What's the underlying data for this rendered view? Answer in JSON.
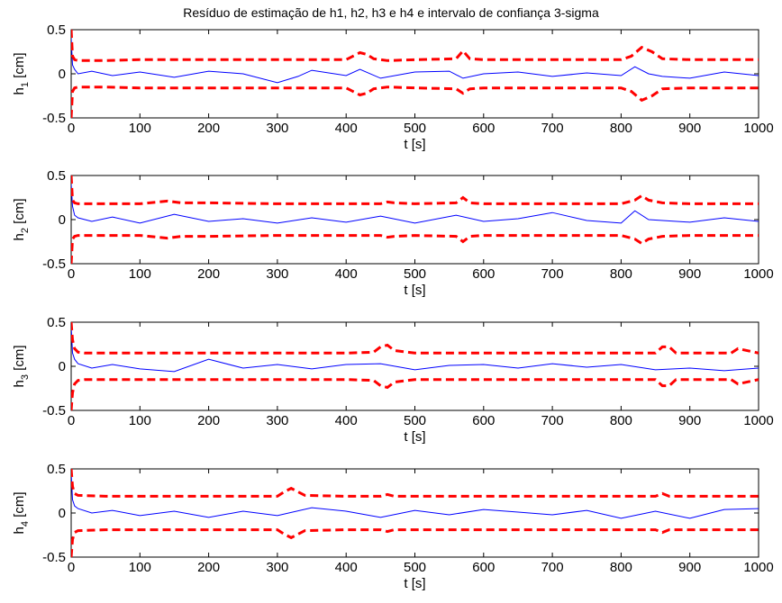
{
  "figure": {
    "title": "Resíduo de estimação de h1, h2, h3 e h4 e intervalo de confiança 3-sigma"
  },
  "chart_data": [
    {
      "type": "line",
      "ylabel_base": "h",
      "ylabel_sub": "1",
      "ylabel_unit": " [cm]",
      "xlabel": "t [s]",
      "xlim": [
        0,
        1000
      ],
      "ylim": [
        -0.5,
        0.5
      ],
      "xticks": [
        0,
        100,
        200,
        300,
        400,
        500,
        600,
        700,
        800,
        900,
        1000
      ],
      "yticks": [
        0.5,
        0,
        -0.5
      ],
      "series": [
        {
          "role": "residual",
          "color": "#0000ff",
          "style": "solid",
          "x": [
            0,
            2,
            5,
            10,
            30,
            60,
            100,
            150,
            200,
            250,
            300,
            330,
            350,
            400,
            420,
            450,
            500,
            550,
            570,
            600,
            650,
            700,
            750,
            800,
            820,
            840,
            860,
            900,
            950,
            1000
          ],
          "y": [
            0.4,
            0.1,
            0.05,
            0.0,
            0.03,
            -0.02,
            0.02,
            -0.04,
            0.03,
            0.0,
            -0.1,
            -0.03,
            0.04,
            -0.02,
            0.05,
            -0.05,
            0.02,
            0.03,
            -0.05,
            0.0,
            0.02,
            -0.03,
            0.01,
            -0.02,
            0.08,
            0.0,
            -0.03,
            -0.05,
            0.02,
            -0.02
          ]
        },
        {
          "role": "upper-bound",
          "color": "#ff0000",
          "style": "dashed",
          "x": [
            0,
            2,
            5,
            10,
            50,
            100,
            200,
            300,
            400,
            410,
            420,
            430,
            440,
            460,
            500,
            560,
            570,
            580,
            600,
            700,
            800,
            815,
            830,
            845,
            860,
            900,
            1000
          ],
          "y": [
            0.5,
            0.2,
            0.16,
            0.15,
            0.15,
            0.16,
            0.16,
            0.16,
            0.16,
            0.2,
            0.24,
            0.22,
            0.17,
            0.15,
            0.16,
            0.17,
            0.26,
            0.17,
            0.16,
            0.16,
            0.16,
            0.2,
            0.3,
            0.25,
            0.17,
            0.16,
            0.16
          ]
        },
        {
          "role": "lower-bound",
          "color": "#ff0000",
          "style": "dashed",
          "x": [
            0,
            2,
            5,
            10,
            50,
            100,
            200,
            300,
            400,
            410,
            420,
            430,
            440,
            460,
            500,
            560,
            570,
            580,
            600,
            700,
            800,
            815,
            830,
            845,
            860,
            900,
            1000
          ],
          "y": [
            -0.5,
            -0.2,
            -0.16,
            -0.15,
            -0.15,
            -0.16,
            -0.16,
            -0.16,
            -0.16,
            -0.2,
            -0.24,
            -0.22,
            -0.17,
            -0.15,
            -0.16,
            -0.17,
            -0.22,
            -0.17,
            -0.16,
            -0.16,
            -0.16,
            -0.2,
            -0.3,
            -0.25,
            -0.17,
            -0.16,
            -0.16
          ]
        }
      ]
    },
    {
      "type": "line",
      "ylabel_base": "h",
      "ylabel_sub": "2",
      "ylabel_unit": " [cm]",
      "xlabel": "t [s]",
      "xlim": [
        0,
        1000
      ],
      "ylim": [
        -0.5,
        0.5
      ],
      "xticks": [
        0,
        100,
        200,
        300,
        400,
        500,
        600,
        700,
        800,
        900,
        1000
      ],
      "yticks": [
        0.5,
        0,
        -0.5
      ],
      "series": [
        {
          "role": "residual",
          "color": "#0000ff",
          "style": "solid",
          "x": [
            0,
            2,
            5,
            10,
            30,
            60,
            100,
            150,
            200,
            250,
            300,
            350,
            400,
            450,
            500,
            560,
            600,
            650,
            700,
            750,
            800,
            820,
            840,
            900,
            950,
            1000
          ],
          "y": [
            0.4,
            0.15,
            0.05,
            0.02,
            -0.02,
            0.03,
            -0.04,
            0.06,
            -0.02,
            0.01,
            -0.04,
            0.02,
            -0.03,
            0.04,
            -0.04,
            0.05,
            -0.02,
            0.01,
            0.08,
            -0.01,
            -0.04,
            0.1,
            0.0,
            -0.03,
            0.02,
            -0.02
          ]
        },
        {
          "role": "upper-bound",
          "color": "#ff0000",
          "style": "dashed",
          "x": [
            0,
            2,
            5,
            10,
            50,
            100,
            140,
            150,
            160,
            200,
            300,
            400,
            450,
            460,
            470,
            500,
            560,
            570,
            580,
            600,
            700,
            800,
            820,
            830,
            840,
            860,
            900,
            1000
          ],
          "y": [
            0.5,
            0.22,
            0.19,
            0.18,
            0.18,
            0.18,
            0.21,
            0.2,
            0.19,
            0.19,
            0.18,
            0.18,
            0.18,
            0.2,
            0.19,
            0.18,
            0.19,
            0.25,
            0.19,
            0.18,
            0.18,
            0.18,
            0.22,
            0.27,
            0.22,
            0.19,
            0.18,
            0.18
          ]
        },
        {
          "role": "lower-bound",
          "color": "#ff0000",
          "style": "dashed",
          "x": [
            0,
            2,
            5,
            10,
            50,
            100,
            140,
            150,
            160,
            200,
            300,
            400,
            450,
            460,
            470,
            500,
            560,
            570,
            580,
            600,
            700,
            800,
            820,
            830,
            840,
            860,
            900,
            1000
          ],
          "y": [
            -0.5,
            -0.22,
            -0.19,
            -0.18,
            -0.18,
            -0.18,
            -0.21,
            -0.2,
            -0.19,
            -0.19,
            -0.18,
            -0.18,
            -0.18,
            -0.2,
            -0.19,
            -0.18,
            -0.19,
            -0.25,
            -0.19,
            -0.18,
            -0.18,
            -0.18,
            -0.22,
            -0.27,
            -0.22,
            -0.19,
            -0.18,
            -0.18
          ]
        }
      ]
    },
    {
      "type": "line",
      "ylabel_base": "h",
      "ylabel_sub": "3",
      "ylabel_unit": " [cm]",
      "xlabel": "t [s]",
      "xlim": [
        0,
        1000
      ],
      "ylim": [
        -0.5,
        0.5
      ],
      "xticks": [
        0,
        100,
        200,
        300,
        400,
        500,
        600,
        700,
        800,
        900,
        1000
      ],
      "yticks": [
        0.5,
        0,
        -0.5
      ],
      "series": [
        {
          "role": "residual",
          "color": "#0000ff",
          "style": "solid",
          "x": [
            0,
            2,
            5,
            10,
            30,
            60,
            100,
            150,
            200,
            250,
            300,
            350,
            400,
            450,
            500,
            550,
            600,
            650,
            700,
            750,
            800,
            850,
            900,
            950,
            1000
          ],
          "y": [
            0.45,
            0.15,
            0.08,
            0.03,
            -0.02,
            0.02,
            -0.03,
            -0.06,
            0.08,
            -0.02,
            0.02,
            -0.03,
            0.02,
            0.03,
            -0.04,
            0.01,
            0.02,
            -0.02,
            0.03,
            -0.01,
            0.02,
            -0.04,
            -0.02,
            -0.05,
            -0.02
          ]
        },
        {
          "role": "upper-bound",
          "color": "#ff0000",
          "style": "dashed",
          "x": [
            0,
            2,
            5,
            10,
            20,
            50,
            100,
            200,
            300,
            400,
            440,
            450,
            460,
            470,
            500,
            600,
            700,
            800,
            850,
            860,
            870,
            880,
            900,
            960,
            970,
            1000
          ],
          "y": [
            0.5,
            0.3,
            0.2,
            0.16,
            0.15,
            0.15,
            0.15,
            0.15,
            0.15,
            0.15,
            0.16,
            0.22,
            0.24,
            0.18,
            0.15,
            0.15,
            0.15,
            0.15,
            0.15,
            0.22,
            0.22,
            0.15,
            0.15,
            0.15,
            0.2,
            0.15
          ]
        },
        {
          "role": "lower-bound",
          "color": "#ff0000",
          "style": "dashed",
          "x": [
            0,
            2,
            5,
            10,
            20,
            50,
            100,
            200,
            300,
            400,
            440,
            450,
            460,
            470,
            500,
            600,
            700,
            800,
            850,
            860,
            870,
            880,
            900,
            960,
            970,
            1000
          ],
          "y": [
            -0.5,
            -0.3,
            -0.2,
            -0.16,
            -0.15,
            -0.15,
            -0.15,
            -0.15,
            -0.15,
            -0.15,
            -0.16,
            -0.22,
            -0.24,
            -0.18,
            -0.15,
            -0.15,
            -0.15,
            -0.15,
            -0.15,
            -0.22,
            -0.22,
            -0.15,
            -0.15,
            -0.15,
            -0.2,
            -0.15
          ]
        }
      ]
    },
    {
      "type": "line",
      "ylabel_base": "h",
      "ylabel_sub": "4",
      "ylabel_unit": " [cm]",
      "xlabel": "t [s]",
      "xlim": [
        0,
        1000
      ],
      "ylim": [
        -0.5,
        0.5
      ],
      "xticks": [
        0,
        100,
        200,
        300,
        400,
        500,
        600,
        700,
        800,
        900,
        1000
      ],
      "yticks": [
        0.5,
        0,
        -0.5
      ],
      "series": [
        {
          "role": "residual",
          "color": "#0000ff",
          "style": "solid",
          "x": [
            0,
            2,
            5,
            10,
            30,
            60,
            100,
            150,
            200,
            250,
            300,
            350,
            400,
            450,
            500,
            550,
            600,
            650,
            700,
            750,
            800,
            850,
            900,
            950,
            1000
          ],
          "y": [
            0.45,
            0.15,
            0.08,
            0.05,
            0.0,
            0.03,
            -0.03,
            0.02,
            -0.05,
            0.02,
            -0.03,
            0.06,
            0.02,
            -0.05,
            0.03,
            -0.02,
            0.04,
            0.01,
            -0.02,
            0.03,
            -0.06,
            0.02,
            -0.06,
            0.04,
            0.05
          ]
        },
        {
          "role": "upper-bound",
          "color": "#ff0000",
          "style": "dashed",
          "x": [
            0,
            2,
            5,
            10,
            50,
            100,
            200,
            300,
            310,
            320,
            330,
            340,
            400,
            450,
            460,
            470,
            500,
            600,
            700,
            800,
            850,
            860,
            870,
            900,
            1000
          ],
          "y": [
            0.5,
            0.3,
            0.22,
            0.2,
            0.19,
            0.19,
            0.19,
            0.19,
            0.24,
            0.28,
            0.24,
            0.2,
            0.19,
            0.19,
            0.21,
            0.19,
            0.19,
            0.19,
            0.19,
            0.19,
            0.19,
            0.22,
            0.19,
            0.19,
            0.19
          ]
        },
        {
          "role": "lower-bound",
          "color": "#ff0000",
          "style": "dashed",
          "x": [
            0,
            2,
            5,
            10,
            50,
            100,
            200,
            300,
            310,
            320,
            330,
            340,
            400,
            450,
            460,
            470,
            500,
            600,
            700,
            800,
            850,
            860,
            870,
            900,
            1000
          ],
          "y": [
            -0.5,
            -0.3,
            -0.22,
            -0.2,
            -0.19,
            -0.19,
            -0.19,
            -0.19,
            -0.24,
            -0.28,
            -0.24,
            -0.2,
            -0.19,
            -0.19,
            -0.21,
            -0.19,
            -0.19,
            -0.19,
            -0.19,
            -0.19,
            -0.19,
            -0.22,
            -0.19,
            -0.19,
            -0.19
          ]
        }
      ]
    }
  ]
}
